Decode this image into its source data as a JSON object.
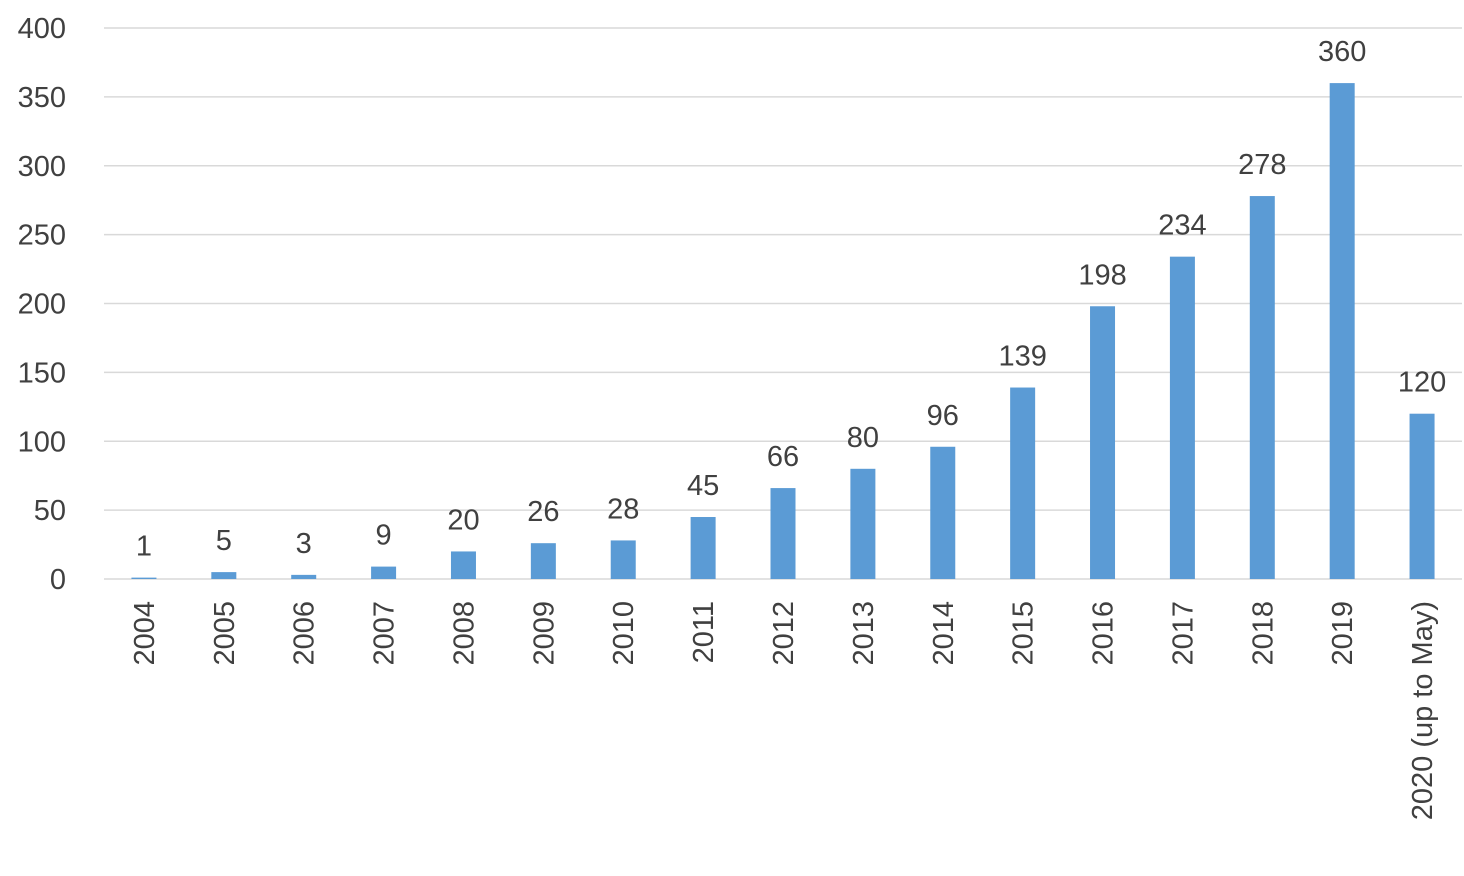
{
  "chart_data": {
    "type": "bar",
    "categories": [
      "2004",
      "2005",
      "2006",
      "2007",
      "2008",
      "2009",
      "2010",
      "2011",
      "2012",
      "2013",
      "2014",
      "2015",
      "2016",
      "2017",
      "2018",
      "2019",
      "2020 (up to May)"
    ],
    "values": [
      1,
      5,
      3,
      9,
      20,
      26,
      28,
      45,
      66,
      80,
      96,
      139,
      198,
      234,
      278,
      360,
      120
    ],
    "title": "",
    "xlabel": "",
    "ylabel": "",
    "ylim": [
      0,
      400
    ],
    "yticks": [
      0,
      50,
      100,
      150,
      200,
      250,
      300,
      350,
      400
    ],
    "grid": true,
    "legend": "none",
    "bar_color": "#5b9bd5",
    "data_labels": true
  }
}
